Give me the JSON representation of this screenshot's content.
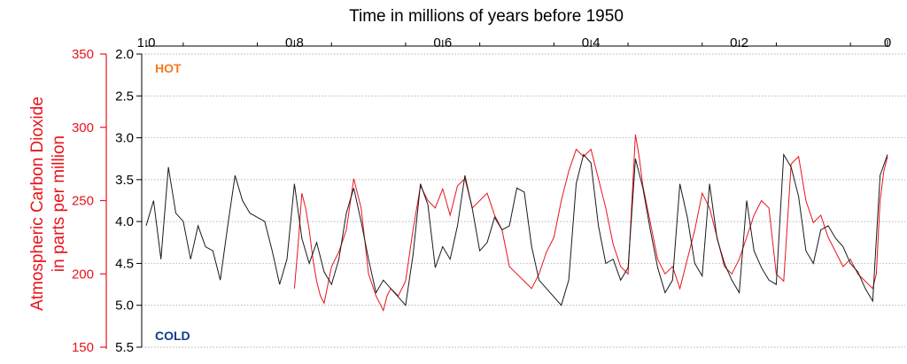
{
  "chart_data": {
    "type": "line",
    "title": "Time in millions of years before 1950",
    "xlabel": "Time in millions of years before 1950",
    "x_ticks": [
      "1.0",
      "0.8",
      "0.6",
      "0.4",
      "0.2",
      "0"
    ],
    "xlim": [
      1.0,
      0.0
    ],
    "y_left_label_line1": "Atmospheric Carbon Dioxide",
    "y_left_label_line2": "in parts per million",
    "y_left_ticks": [
      "350",
      "300",
      "250",
      "200",
      "150"
    ],
    "y_left_lim": [
      150,
      350
    ],
    "y_right_ticks": [
      "2.0",
      "2.5",
      "3.0",
      "3.5",
      "4.0",
      "4.5",
      "5.0",
      "5.5"
    ],
    "y_right_lim": [
      2.0,
      5.5
    ],
    "gridlines": true,
    "annotations": {
      "hot": "HOT",
      "cold": "COLD"
    },
    "colors": {
      "co2": "#e8141c",
      "temp_proxy": "#1a1a1a",
      "hot": "#f47a20",
      "cold": "#0d3b8c",
      "grid": "#999999"
    },
    "series": [
      {
        "axis": "right",
        "x": [
          1.0,
          0.99,
          0.98,
          0.97,
          0.96,
          0.95,
          0.94,
          0.93,
          0.92,
          0.91,
          0.9,
          0.89,
          0.88,
          0.87,
          0.86,
          0.85,
          0.84,
          0.83,
          0.82,
          0.81,
          0.8,
          0.79,
          0.78,
          0.77,
          0.76,
          0.75,
          0.74,
          0.73,
          0.72,
          0.71,
          0.7,
          0.69,
          0.68,
          0.67,
          0.66,
          0.65,
          0.64,
          0.63,
          0.62,
          0.61,
          0.6,
          0.59,
          0.58,
          0.57,
          0.56,
          0.55,
          0.54,
          0.53,
          0.52,
          0.51,
          0.5,
          0.49,
          0.48,
          0.47,
          0.46,
          0.45,
          0.44,
          0.43,
          0.42,
          0.41,
          0.4,
          0.39,
          0.38,
          0.37,
          0.36,
          0.35,
          0.34,
          0.33,
          0.32,
          0.31,
          0.3,
          0.29,
          0.28,
          0.27,
          0.26,
          0.25,
          0.24,
          0.23,
          0.22,
          0.21,
          0.2,
          0.19,
          0.18,
          0.17,
          0.16,
          0.15,
          0.14,
          0.13,
          0.12,
          0.11,
          0.1,
          0.09,
          0.08,
          0.07,
          0.06,
          0.05,
          0.04,
          0.03,
          0.02,
          0.01,
          0.0
        ],
        "values": [
          4.05,
          3.75,
          4.45,
          3.35,
          3.9,
          4.0,
          4.45,
          4.05,
          4.3,
          4.35,
          4.7,
          4.05,
          3.45,
          3.75,
          3.9,
          3.95,
          4.0,
          4.35,
          4.75,
          4.45,
          3.55,
          4.2,
          4.5,
          4.25,
          4.6,
          4.75,
          4.45,
          3.9,
          3.6,
          4.0,
          4.45,
          4.85,
          4.7,
          4.8,
          4.9,
          5.0,
          4.4,
          3.55,
          3.8,
          4.55,
          4.3,
          4.45,
          4.05,
          3.45,
          3.85,
          4.35,
          4.25,
          3.95,
          4.1,
          4.05,
          3.6,
          3.65,
          4.3,
          4.7,
          4.8,
          4.9,
          5.0,
          4.7,
          3.55,
          3.2,
          3.3,
          4.05,
          4.5,
          4.45,
          4.7,
          4.55,
          3.25,
          3.6,
          4.1,
          4.55,
          4.85,
          4.7,
          3.55,
          3.95,
          4.5,
          4.65,
          3.55,
          4.2,
          4.5,
          4.7,
          4.85,
          3.75,
          4.35,
          4.55,
          4.7,
          4.75,
          3.2,
          3.35,
          3.7,
          4.35,
          4.5,
          4.1,
          4.05,
          4.2,
          4.3,
          4.5,
          4.6,
          4.8,
          4.95,
          3.45,
          3.2
        ]
      },
      {
        "axis": "left",
        "x": [
          0.8,
          0.795,
          0.79,
          0.785,
          0.78,
          0.775,
          0.77,
          0.765,
          0.76,
          0.75,
          0.74,
          0.73,
          0.72,
          0.71,
          0.7,
          0.69,
          0.685,
          0.68,
          0.675,
          0.67,
          0.66,
          0.65,
          0.64,
          0.63,
          0.62,
          0.61,
          0.6,
          0.59,
          0.58,
          0.57,
          0.56,
          0.55,
          0.54,
          0.53,
          0.52,
          0.51,
          0.5,
          0.49,
          0.48,
          0.47,
          0.46,
          0.45,
          0.44,
          0.43,
          0.42,
          0.41,
          0.4,
          0.39,
          0.38,
          0.37,
          0.36,
          0.35,
          0.34,
          0.335,
          0.33,
          0.32,
          0.31,
          0.3,
          0.29,
          0.28,
          0.27,
          0.26,
          0.25,
          0.24,
          0.23,
          0.22,
          0.21,
          0.2,
          0.19,
          0.18,
          0.17,
          0.16,
          0.15,
          0.14,
          0.13,
          0.12,
          0.11,
          0.1,
          0.09,
          0.08,
          0.07,
          0.06,
          0.05,
          0.04,
          0.03,
          0.02,
          0.015,
          0.01,
          0.005,
          0.0
        ],
        "values": [
          190,
          220,
          255,
          245,
          230,
          210,
          195,
          185,
          180,
          205,
          215,
          230,
          265,
          245,
          200,
          185,
          180,
          175,
          185,
          190,
          185,
          195,
          230,
          260,
          250,
          245,
          258,
          240,
          260,
          265,
          245,
          250,
          255,
          240,
          230,
          205,
          200,
          195,
          190,
          200,
          215,
          225,
          250,
          270,
          285,
          280,
          285,
          265,
          245,
          220,
          205,
          200,
          295,
          280,
          260,
          235,
          210,
          200,
          205,
          190,
          210,
          230,
          255,
          245,
          225,
          205,
          200,
          210,
          225,
          240,
          250,
          245,
          200,
          195,
          275,
          280,
          250,
          235,
          240,
          225,
          215,
          205,
          210,
          200,
          195,
          190,
          200,
          250,
          270,
          280
        ]
      }
    ]
  }
}
